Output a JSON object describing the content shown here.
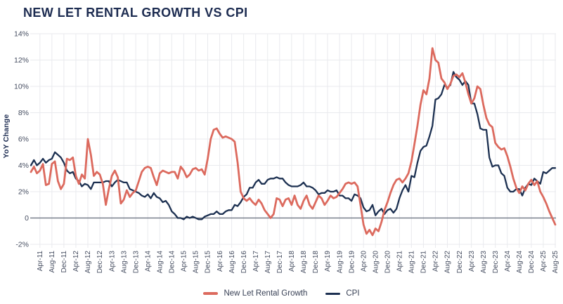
{
  "title": "NEW LET RENTAL GROWTH VS CPI",
  "y_axis_title": "YoY Change",
  "legend": [
    {
      "label": "New Let Rental Growth",
      "color": "#dc6a5e"
    },
    {
      "label": "CPI",
      "color": "#1c3051"
    }
  ],
  "colors": {
    "title": "#1d2c51",
    "grid": "#e9eaee",
    "zero_line": "#606878",
    "tick_text": "#454d60",
    "rental_line": "#dc6a5e",
    "cpi_line": "#1c3051"
  },
  "chart_data": {
    "type": "line",
    "title": "NEW LET RENTAL GROWTH VS CPI",
    "ylabel": "YoY Change",
    "xlabel": "",
    "ylim": [
      -2,
      14
    ],
    "grid": true,
    "legend_position": "bottom",
    "frequency": "monthly",
    "x_start": "Jan-11",
    "x_end": "Aug-25",
    "x_tick_first_index": 3,
    "x_tick_step": 4,
    "x_tick_labels": [
      "Apr-11",
      "Aug-11",
      "Dec-11",
      "Apr-12",
      "Aug-12",
      "Dec-12",
      "Apr-13",
      "Aug-13",
      "Dec-13",
      "Apr-14",
      "Aug-14",
      "Dec-14",
      "Apr-15",
      "Aug-15",
      "Dec-15",
      "Apr-16",
      "Aug-16",
      "Dec-16",
      "Apr-17",
      "Aug-17",
      "Dec-17",
      "Apr-18",
      "Aug-18",
      "Dec-18",
      "Apr-19",
      "Aug-19",
      "Dec-19",
      "Apr-20",
      "Aug-20",
      "Dec-20",
      "Apr-21",
      "Aug-21",
      "Dec-21",
      "Apr-22",
      "Aug-22",
      "Dec-22",
      "Apr-23",
      "Aug-23",
      "Dec-23",
      "Apr-24",
      "Aug-24",
      "Dec-24",
      "Apr-25",
      "Aug-25"
    ],
    "y_tick_labels": [
      "14%",
      "12%",
      "10%",
      "8%",
      "6%",
      "4%",
      "2%",
      "0",
      "-2%"
    ],
    "y_tick_values": [
      14,
      12,
      10,
      8,
      6,
      4,
      2,
      0,
      -2
    ],
    "series": [
      {
        "name": "New Let Rental Growth",
        "color": "#dc6a5e",
        "values": [
          3.5,
          3.9,
          3.4,
          3.6,
          4.1,
          2.5,
          2.6,
          4.1,
          4.3,
          2.8,
          2.2,
          2.6,
          4.5,
          4.4,
          4.6,
          3.2,
          2.6,
          3.3,
          3.0,
          6.0,
          4.8,
          3.2,
          3.5,
          3.3,
          2.6,
          1.0,
          2.2,
          3.2,
          3.6,
          3.1,
          1.1,
          1.4,
          2.1,
          1.6,
          1.9,
          2.1,
          2.8,
          3.5,
          3.8,
          3.9,
          3.8,
          3.1,
          2.5,
          3.4,
          3.6,
          3.5,
          3.4,
          3.5,
          3.5,
          3.0,
          3.9,
          3.6,
          3.1,
          3.3,
          3.7,
          3.8,
          3.6,
          3.7,
          3.3,
          4.5,
          6.0,
          6.7,
          6.8,
          6.4,
          6.1,
          6.2,
          6.1,
          6.0,
          5.8,
          4.2,
          2.0,
          1.5,
          1.3,
          1.5,
          1.2,
          1.0,
          1.4,
          1.1,
          0.6,
          0.3,
          0.0,
          0.3,
          1.5,
          1.4,
          0.9,
          1.4,
          1.5,
          1.0,
          1.7,
          1.0,
          0.7,
          1.3,
          1.7,
          1.0,
          0.7,
          1.2,
          1.7,
          1.5,
          1.0,
          1.3,
          1.7,
          1.5,
          1.6,
          1.9,
          2.2,
          2.6,
          2.7,
          2.6,
          2.7,
          2.4,
          1.0,
          -0.5,
          -1.2,
          -0.9,
          -1.3,
          -0.8,
          -1.0,
          -0.3,
          0.6,
          1.2,
          1.9,
          2.5,
          2.9,
          3.0,
          2.7,
          3.0,
          3.4,
          4.3,
          5.6,
          7.0,
          8.6,
          9.7,
          9.4,
          10.6,
          12.9,
          12.0,
          11.8,
          10.6,
          10.3,
          9.8,
          10.2,
          10.8,
          10.9,
          10.7,
          11.0,
          10.3,
          9.4,
          8.7,
          9.1,
          10.0,
          9.8,
          8.6,
          7.6,
          7.1,
          6.9,
          5.7,
          5.4,
          5.2,
          5.3,
          4.7,
          3.9,
          3.0,
          2.3,
          1.9,
          2.4,
          2.1,
          2.6,
          2.9,
          2.5,
          2.8,
          2.0,
          1.6,
          1.1,
          0.5,
          0.0,
          -0.5
        ]
      },
      {
        "name": "CPI",
        "color": "#1c3051",
        "values": [
          4.0,
          4.4,
          4.0,
          4.2,
          4.5,
          4.2,
          4.4,
          4.5,
          5.0,
          4.8,
          4.6,
          4.2,
          3.6,
          3.4,
          3.5,
          3.0,
          2.8,
          2.4,
          2.6,
          2.5,
          2.2,
          2.7,
          2.7,
          2.7,
          2.7,
          2.8,
          2.8,
          2.4,
          2.7,
          2.9,
          2.8,
          2.7,
          2.7,
          2.2,
          2.1,
          2.0,
          1.9,
          1.7,
          1.6,
          1.8,
          1.5,
          1.9,
          1.6,
          1.5,
          1.2,
          1.3,
          1.0,
          0.5,
          0.3,
          0.0,
          0.0,
          -0.1,
          0.1,
          0.0,
          0.1,
          0.0,
          -0.1,
          -0.1,
          0.1,
          0.2,
          0.3,
          0.3,
          0.5,
          0.3,
          0.3,
          0.5,
          0.6,
          0.6,
          1.0,
          0.9,
          1.2,
          1.6,
          1.8,
          2.3,
          2.3,
          2.7,
          2.9,
          2.6,
          2.6,
          2.9,
          3.0,
          3.0,
          3.1,
          3.0,
          3.0,
          2.7,
          2.5,
          2.4,
          2.4,
          2.4,
          2.5,
          2.7,
          2.4,
          2.4,
          2.3,
          2.1,
          1.8,
          1.9,
          1.9,
          2.1,
          2.0,
          2.0,
          2.1,
          1.7,
          1.7,
          1.5,
          1.5,
          1.3,
          1.8,
          1.7,
          1.5,
          0.8,
          0.5,
          0.6,
          1.0,
          0.2,
          0.5,
          0.7,
          0.3,
          0.6,
          0.7,
          0.4,
          0.7,
          1.5,
          2.1,
          2.5,
          2.0,
          3.2,
          3.1,
          4.2,
          5.1,
          5.4,
          5.5,
          6.2,
          7.0,
          9.0,
          9.1,
          9.4,
          10.1,
          9.9,
          10.1,
          11.1,
          10.7,
          10.5,
          10.1,
          10.4,
          10.1,
          8.7,
          8.7,
          7.9,
          6.8,
          6.7,
          6.7,
          4.6,
          3.9,
          4.0,
          4.0,
          3.4,
          3.2,
          2.3,
          2.0,
          2.0,
          2.2,
          2.2,
          1.7,
          2.3,
          2.6,
          2.5,
          3.0,
          2.8,
          2.6,
          3.5,
          3.4,
          3.6,
          3.8,
          3.8
        ]
      }
    ]
  }
}
